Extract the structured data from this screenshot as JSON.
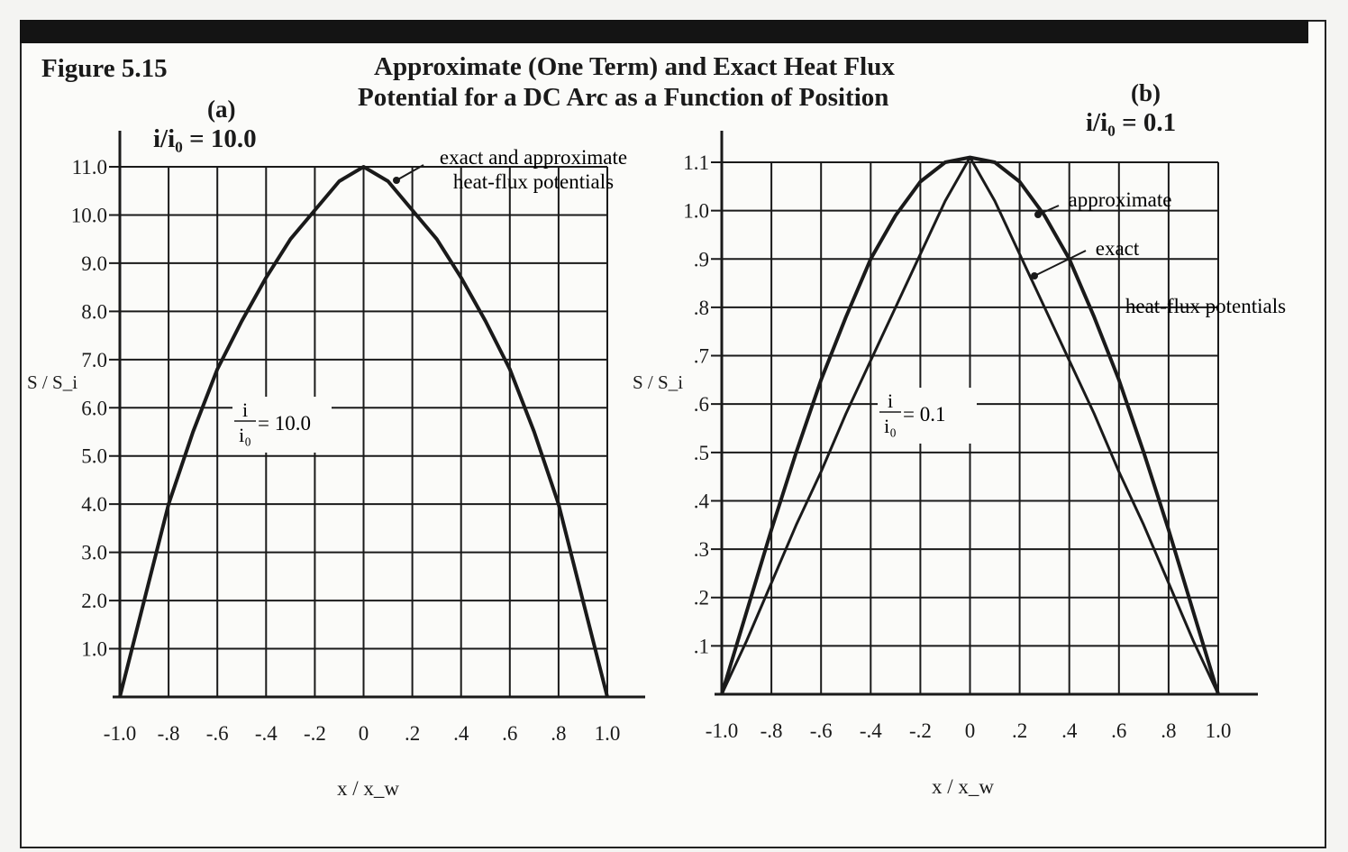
{
  "figure_label": "Figure 5.15",
  "title_line1": "Approximate (One Term) and Exact Heat Flux",
  "title_line2": "Potential for a DC Arc as a Function of Position",
  "colors": {
    "ink": "#1a1a1a",
    "paper": "#fbfbf9",
    "band": "#141414"
  },
  "chart_data": [
    {
      "type": "line",
      "panel": "(a)",
      "subtitle": "i/i₀ = 10.0",
      "xlabel": "x / x_w",
      "ylabel": "S / S_i",
      "xlim": [
        -1.0,
        1.0
      ],
      "ylim": [
        0,
        11.0
      ],
      "grid": true,
      "x_tick_labels": [
        "-1.0",
        "-.8",
        "-.6",
        "-.4",
        "-.2",
        "0",
        ".2",
        ".4",
        ".6",
        ".8",
        "1.0"
      ],
      "x_ticks": [
        -1.0,
        -0.8,
        -0.6,
        -0.4,
        -0.2,
        0,
        0.2,
        0.4,
        0.6,
        0.8,
        1.0
      ],
      "y_tick_labels": [
        "1.0",
        "2.0",
        "3.0",
        "4.0",
        "5.0",
        "6.0",
        "7.0",
        "8.0",
        "9.0",
        "10.0",
        "11.0"
      ],
      "y_ticks": [
        1,
        2,
        3,
        4,
        5,
        6,
        7,
        8,
        9,
        10,
        11
      ],
      "annotations": [
        "exact and approximate",
        "heat-flux potentials"
      ],
      "inline_label": {
        "num": "i",
        "den": "i₀",
        "value": "= 10.0"
      },
      "x": [
        -1.0,
        -0.9,
        -0.8,
        -0.7,
        -0.6,
        -0.5,
        -0.4,
        -0.3,
        -0.2,
        -0.1,
        0,
        0.1,
        0.2,
        0.3,
        0.4,
        0.5,
        0.6,
        0.7,
        0.8,
        0.9,
        1.0
      ],
      "series": [
        {
          "name": "exact and approximate heat-flux potentials",
          "values": [
            0,
            2.0,
            4.0,
            5.5,
            6.8,
            7.8,
            8.7,
            9.5,
            10.1,
            10.7,
            11.0,
            10.7,
            10.1,
            9.5,
            8.7,
            7.8,
            6.8,
            5.5,
            4.0,
            2.0,
            0
          ]
        }
      ]
    },
    {
      "type": "line",
      "panel": "(b)",
      "subtitle": "i/i₀ = 0.1",
      "xlabel": "x / x_w",
      "ylabel": "S / S_i",
      "xlim": [
        -1.0,
        1.0
      ],
      "ylim": [
        0,
        1.1
      ],
      "grid": true,
      "x_tick_labels": [
        "-1.0",
        "-.8",
        "-.6",
        "-.4",
        "-.2",
        "0",
        ".2",
        ".4",
        ".6",
        ".8",
        "1.0"
      ],
      "x_ticks": [
        -1.0,
        -0.8,
        -0.6,
        -0.4,
        -0.2,
        0,
        0.2,
        0.4,
        0.6,
        0.8,
        1.0
      ],
      "y_tick_labels": [
        ".1",
        ".2",
        ".3",
        ".4",
        ".5",
        ".6",
        ".7",
        ".8",
        ".9",
        "1.0",
        "1.1"
      ],
      "y_ticks": [
        0.1,
        0.2,
        0.3,
        0.4,
        0.5,
        0.6,
        0.7,
        0.8,
        0.9,
        1.0,
        1.1
      ],
      "annotations": [
        "approximate",
        "exact",
        "heat-flux potentials"
      ],
      "inline_label": {
        "num": "i",
        "den": "i₀",
        "value": "= 0.1"
      },
      "x": [
        -1.0,
        -0.9,
        -0.8,
        -0.7,
        -0.6,
        -0.5,
        -0.4,
        -0.3,
        -0.2,
        -0.1,
        0,
        0.1,
        0.2,
        0.3,
        0.4,
        0.5,
        0.6,
        0.7,
        0.8,
        0.9,
        1.0
      ],
      "series": [
        {
          "name": "approximate",
          "values": [
            0,
            0.17,
            0.34,
            0.5,
            0.65,
            0.78,
            0.9,
            0.99,
            1.06,
            1.1,
            1.11,
            1.1,
            1.06,
            0.99,
            0.9,
            0.78,
            0.65,
            0.5,
            0.34,
            0.17,
            0
          ]
        },
        {
          "name": "exact",
          "values": [
            0,
            0.11,
            0.23,
            0.35,
            0.46,
            0.58,
            0.69,
            0.8,
            0.91,
            1.02,
            1.11,
            1.02,
            0.91,
            0.8,
            0.69,
            0.58,
            0.46,
            0.35,
            0.23,
            0.11,
            0
          ]
        }
      ]
    }
  ]
}
